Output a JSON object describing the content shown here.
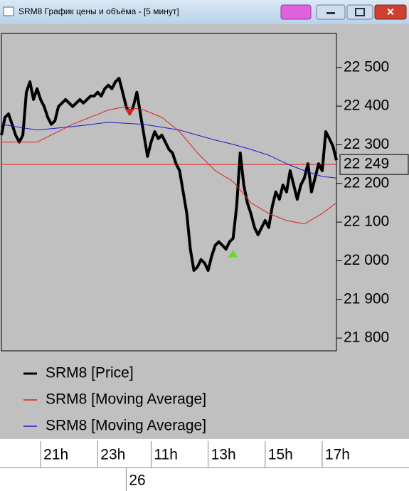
{
  "window_title": "SRM8 График цены и объёма - [5 минут]",
  "chart_data": {
    "type": "line",
    "xlim": [
      0,
      94
    ],
    "ylim": [
      21767,
      22588
    ],
    "yticks": [
      {
        "value": 21800,
        "label": "21 800"
      },
      {
        "value": 21900,
        "label": "21 900"
      },
      {
        "value": 22000,
        "label": "22 000"
      },
      {
        "value": 22100,
        "label": "22 100"
      },
      {
        "value": 22200,
        "label": "22 200"
      },
      {
        "value": 22300,
        "label": "22 300"
      },
      {
        "value": 22400,
        "label": "22 400"
      },
      {
        "value": 22500,
        "label": "22 500"
      }
    ],
    "xticks": [
      {
        "value": 11,
        "label": "21h"
      },
      {
        "value": 27,
        "label": "23h"
      },
      {
        "value": 42,
        "label": "11h"
      },
      {
        "value": 58,
        "label": "13h"
      },
      {
        "value": 74,
        "label": "15h"
      },
      {
        "value": 90,
        "label": "17h"
      }
    ],
    "date_ticks": [
      {
        "value": 35,
        "label": "26"
      }
    ],
    "current_price": {
      "value": 22249,
      "label": "22 249",
      "color": "#e02020"
    },
    "series": [
      {
        "name": "SRM8 [Price]",
        "color": "#000000",
        "x": [
          0,
          1,
          2,
          3,
          4,
          5,
          6,
          7,
          8,
          9,
          10,
          11,
          12,
          13,
          14,
          15,
          16,
          17,
          18,
          19,
          20,
          21,
          22,
          23,
          24,
          25,
          26,
          27,
          28,
          29,
          30,
          31,
          32,
          33,
          34,
          35,
          36,
          37,
          38,
          39,
          40,
          41,
          42,
          43,
          44,
          45,
          46,
          47,
          48,
          49,
          50,
          51,
          52,
          53,
          54,
          55,
          56,
          57,
          58,
          59,
          60,
          61,
          62,
          63,
          64,
          65,
          66,
          67,
          68,
          69,
          70,
          71,
          72,
          73,
          74,
          75,
          76,
          77,
          78,
          79,
          80,
          81,
          82,
          83,
          84,
          85,
          86,
          87,
          88,
          89,
          90,
          91,
          92,
          93,
          94
        ],
        "values": [
          22325,
          22371,
          22380,
          22353,
          22325,
          22307,
          22325,
          22436,
          22463,
          22417,
          22445,
          22417,
          22399,
          22371,
          22353,
          22362,
          22399,
          22408,
          22417,
          22408,
          22399,
          22408,
          22417,
          22408,
          22417,
          22426,
          22426,
          22436,
          22426,
          22445,
          22454,
          22445,
          22463,
          22472,
          22436,
          22399,
          22380,
          22399,
          22436,
          22380,
          22325,
          22270,
          22307,
          22334,
          22316,
          22325,
          22307,
          22288,
          22279,
          22251,
          22233,
          22178,
          22122,
          22030,
          21975,
          21984,
          22003,
          21994,
          21975,
          22012,
          22040,
          22049,
          22040,
          22030,
          22049,
          22058,
          22141,
          22279,
          22196,
          22150,
          22122,
          22086,
          22067,
          22086,
          22104,
          22086,
          22141,
          22178,
          22159,
          22196,
          22178,
          22233,
          22196,
          22159,
          22196,
          22214,
          22251,
          22178,
          22214,
          22251,
          22233,
          22334,
          22316,
          22297,
          22260
        ]
      },
      {
        "name": "SRM8 [Moving Average]",
        "color": "#e02020",
        "x": [
          0,
          10,
          20,
          30,
          35,
          40,
          45,
          50,
          55,
          60,
          65,
          70,
          75,
          80,
          85,
          90,
          94
        ],
        "values": [
          22307,
          22307,
          22353,
          22390,
          22399,
          22390,
          22371,
          22334,
          22279,
          22233,
          22205,
          22150,
          22122,
          22104,
          22095,
          22122,
          22150
        ]
      },
      {
        "name": "SRM8 [Moving Average]",
        "color": "#1a1acc",
        "x": [
          0,
          10,
          20,
          30,
          40,
          50,
          55,
          60,
          65,
          70,
          75,
          80,
          85,
          90,
          94
        ],
        "values": [
          22353,
          22338,
          22347,
          22358,
          22353,
          22338,
          22325,
          22312,
          22301,
          22288,
          22273,
          22251,
          22233,
          22218,
          22214
        ]
      }
    ],
    "markers": [
      {
        "x": 36,
        "value": 22384,
        "color": "#e02020",
        "shape": "down"
      },
      {
        "x": 65,
        "value": 22018,
        "color": "#66dd22",
        "shape": "up"
      }
    ]
  }
}
